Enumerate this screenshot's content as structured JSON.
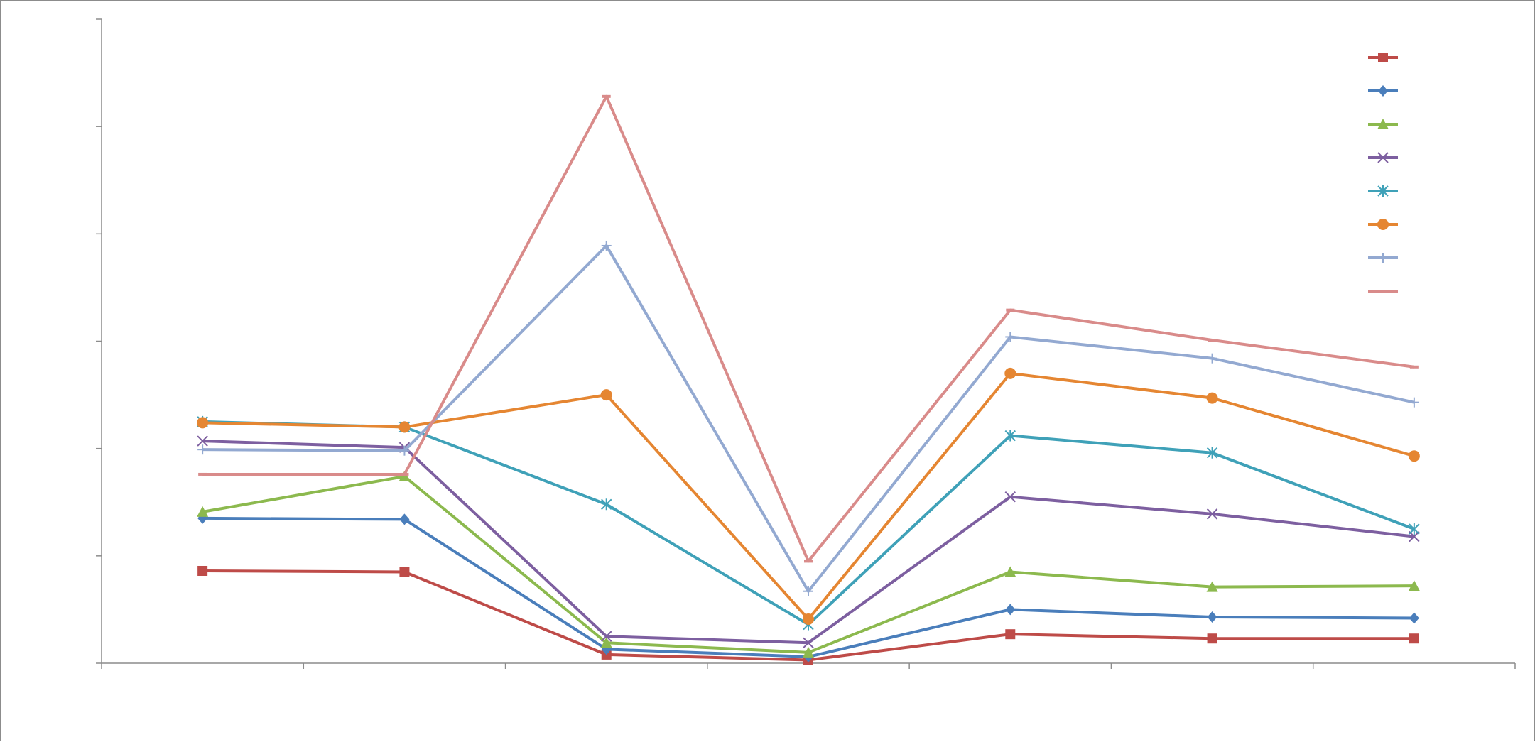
{
  "chart_data": {
    "type": "line",
    "title": "",
    "xlabel": "",
    "ylabel": "",
    "categories": [
      "",
      "",
      "",
      "",
      "",
      "",
      ""
    ],
    "ylim": [
      0,
      600
    ],
    "grid": false,
    "legend_position": "top-right",
    "series": [
      {
        "color": "#be4b48",
        "marker": "square",
        "values": [
          86,
          85,
          8,
          3,
          27,
          23,
          23
        ]
      },
      {
        "color": "#4a7ebb",
        "marker": "diamond",
        "values": [
          135,
          134,
          13,
          6,
          50,
          43,
          42
        ]
      },
      {
        "color": "#8cb94e",
        "marker": "triangle",
        "values": [
          141,
          174,
          19,
          10,
          85,
          71,
          72
        ]
      },
      {
        "color": "#7d5fa0",
        "marker": "x",
        "values": [
          207,
          201,
          25,
          19,
          155,
          139,
          118
        ]
      },
      {
        "color": "#3fa1b8",
        "marker": "star",
        "values": [
          225,
          220,
          148,
          36,
          212,
          196,
          125
        ]
      },
      {
        "color": "#e58632",
        "marker": "circle",
        "values": [
          224,
          220,
          250,
          41,
          270,
          247,
          193
        ]
      },
      {
        "color": "#93a9d1",
        "marker": "plus",
        "values": [
          199,
          198,
          389,
          67,
          304,
          284,
          243
        ]
      },
      {
        "color": "#d98b8a",
        "marker": "dash",
        "values": [
          176,
          176,
          528,
          95,
          329,
          301,
          276
        ]
      }
    ]
  }
}
